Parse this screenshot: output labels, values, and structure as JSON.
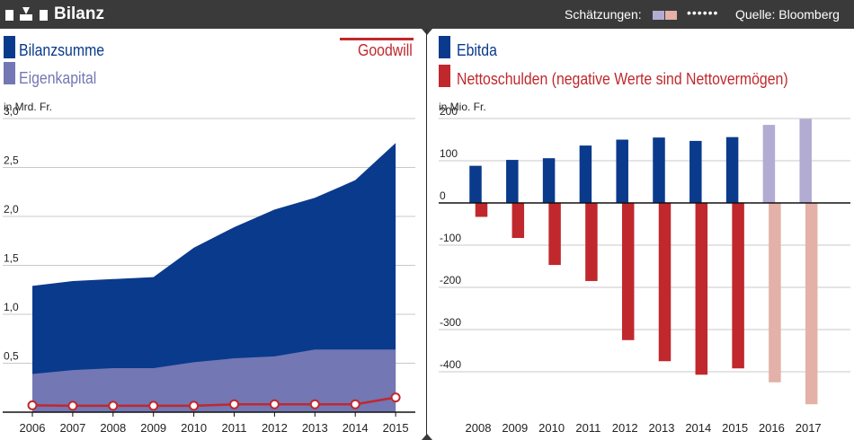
{
  "header": {
    "title": "Bilanz",
    "estimates_label": "Schätzungen:",
    "dots": "••••••",
    "source": "Quelle: Bloomberg"
  },
  "colors": {
    "bar_bg": "#3a3a3a",
    "dark_blue": "#0a3a8c",
    "light_blue": "#7377b4",
    "red": "#c0282d",
    "est_blue": "#b2acd3",
    "est_red": "#e3b1a7"
  },
  "icons": {
    "logo": "nzz-logo-icon",
    "goodwill": "line-marker-icon"
  },
  "chart_data": [
    {
      "type": "area",
      "ylabel": "in Mrd. Fr.",
      "yticks": [
        "0,5",
        "1,0",
        "1,5",
        "2,0",
        "2,5",
        "3,0"
      ],
      "ylim": [
        0,
        3.0
      ],
      "x": [
        "2006",
        "2007",
        "2008",
        "2009",
        "2010",
        "2011",
        "2012",
        "2013",
        "2014",
        "2015"
      ],
      "series": [
        {
          "name": "Bilanzsumme",
          "kind": "area",
          "values": [
            1.29,
            1.34,
            1.36,
            1.38,
            1.68,
            1.89,
            2.07,
            2.19,
            2.37,
            2.75
          ]
        },
        {
          "name": "Eigenkapital",
          "kind": "area",
          "values": [
            0.39,
            0.43,
            0.45,
            0.45,
            0.51,
            0.55,
            0.57,
            0.64,
            0.64,
            0.64
          ]
        },
        {
          "name": "Goodwill",
          "kind": "line",
          "values": [
            0.07,
            0.065,
            0.065,
            0.065,
            0.065,
            0.08,
            0.08,
            0.08,
            0.08,
            0.15
          ]
        }
      ],
      "grid": true,
      "legend": "top"
    },
    {
      "type": "bar",
      "ylabel": "in Mio. Fr.",
      "yticks": [
        "200",
        "100",
        "0",
        "-100",
        "-200",
        "-300",
        "-400"
      ],
      "ylim": [
        -480,
        210
      ],
      "categories": [
        "2008",
        "2009",
        "2010",
        "2011",
        "2012",
        "2013",
        "2014",
        "2015",
        "2016",
        "2017"
      ],
      "estimate_from": "2016",
      "series": [
        {
          "name": "Ebitda",
          "values": [
            88,
            102,
            106,
            136,
            150,
            155,
            147,
            156,
            185,
            199
          ]
        },
        {
          "name": "Nettoschulden (negative Werte sind Nettovermögen)",
          "values": [
            -33,
            -83,
            -147,
            -185,
            -325,
            -375,
            -407,
            -392,
            -425,
            -477
          ]
        }
      ],
      "grid": true,
      "legend": "top"
    }
  ]
}
